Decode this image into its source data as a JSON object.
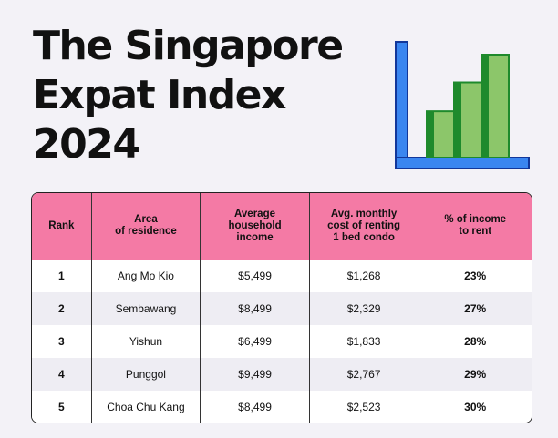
{
  "title_lines": [
    "The Singapore",
    "Expat Index",
    "2024"
  ],
  "icon": {
    "name": "bar-chart-icon",
    "axis_color": "#3a86f0",
    "axis_dark": "#12379a",
    "bar_color": "#8cc66a",
    "bar_dark": "#1e8a2c",
    "bar_levels": [
      0.45,
      0.73,
      1.0
    ]
  },
  "chart_data": {
    "type": "table",
    "columns": [
      "Rank",
      "Area\nof residence",
      "Average\nhousehold\nincome",
      "Avg. monthly\ncost of renting\n1 bed condo",
      "% of income\nto rent"
    ],
    "rows": [
      [
        "1",
        "Ang Mo Kio",
        "$5,499",
        "$1,268",
        "23%"
      ],
      [
        "2",
        "Sembawang",
        "$8,499",
        "$2,329",
        "27%"
      ],
      [
        "3",
        "Yishun",
        "$6,499",
        "$1,833",
        "28%"
      ],
      [
        "4",
        "Punggol",
        "$9,499",
        "$2,767",
        "29%"
      ],
      [
        "5",
        "Choa Chu Kang",
        "$8,499",
        "$2,523",
        "30%"
      ]
    ]
  }
}
